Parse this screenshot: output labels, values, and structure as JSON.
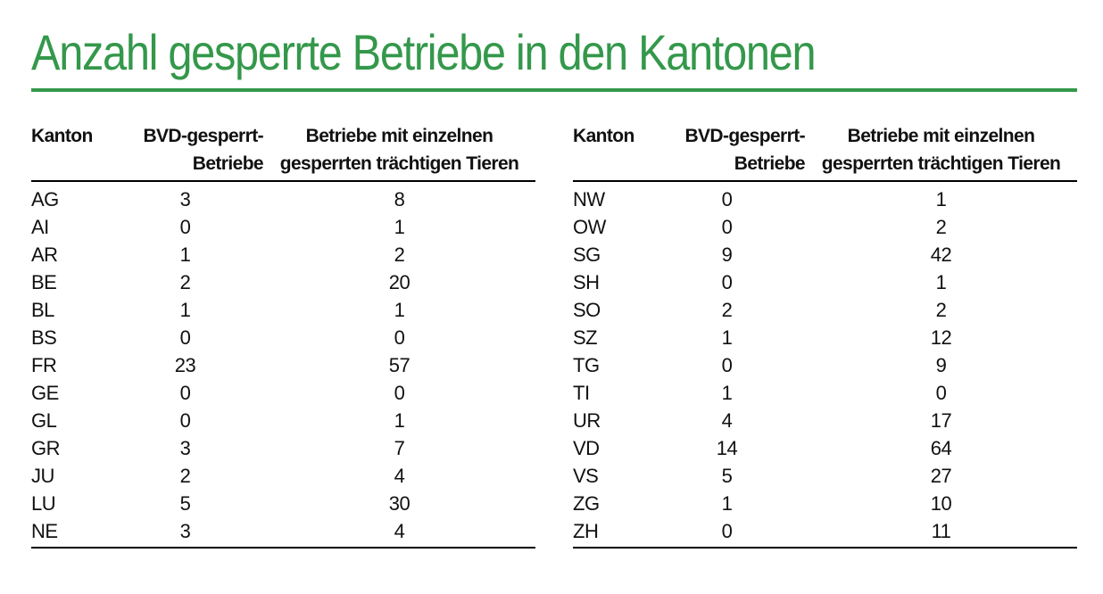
{
  "title": "Anzahl gesperrte Betriebe in den Kantonen",
  "accent_color": "#34984b",
  "columns": {
    "kanton": "Kanton",
    "bvd_line1": "BVD-gesperrt-",
    "bvd_line2": "Betriebe",
    "betriebe_line1": "Betriebe mit einzelnen",
    "betriebe_line2": "gesperrten trächtigen Tieren"
  },
  "tables": {
    "left": {
      "rows": [
        [
          "AG",
          3,
          8
        ],
        [
          "AI",
          0,
          1
        ],
        [
          "AR",
          1,
          2
        ],
        [
          "BE",
          2,
          20
        ],
        [
          "BL",
          1,
          1
        ],
        [
          "BS",
          0,
          0
        ],
        [
          "FR",
          23,
          57
        ],
        [
          "GE",
          0,
          0
        ],
        [
          "GL",
          0,
          1
        ],
        [
          "GR",
          3,
          7
        ],
        [
          "JU",
          2,
          4
        ],
        [
          "LU",
          5,
          30
        ],
        [
          "NE",
          3,
          4
        ]
      ]
    },
    "right": {
      "rows": [
        [
          "NW",
          0,
          1
        ],
        [
          "OW",
          0,
          2
        ],
        [
          "SG",
          9,
          42
        ],
        [
          "SH",
          0,
          1
        ],
        [
          "SO",
          2,
          2
        ],
        [
          "SZ",
          1,
          12
        ],
        [
          "TG",
          0,
          9
        ],
        [
          "TI",
          1,
          0
        ],
        [
          "UR",
          4,
          17
        ],
        [
          "VD",
          14,
          64
        ],
        [
          "VS",
          5,
          27
        ],
        [
          "ZG",
          1,
          10
        ],
        [
          "ZH",
          0,
          11
        ]
      ]
    }
  }
}
